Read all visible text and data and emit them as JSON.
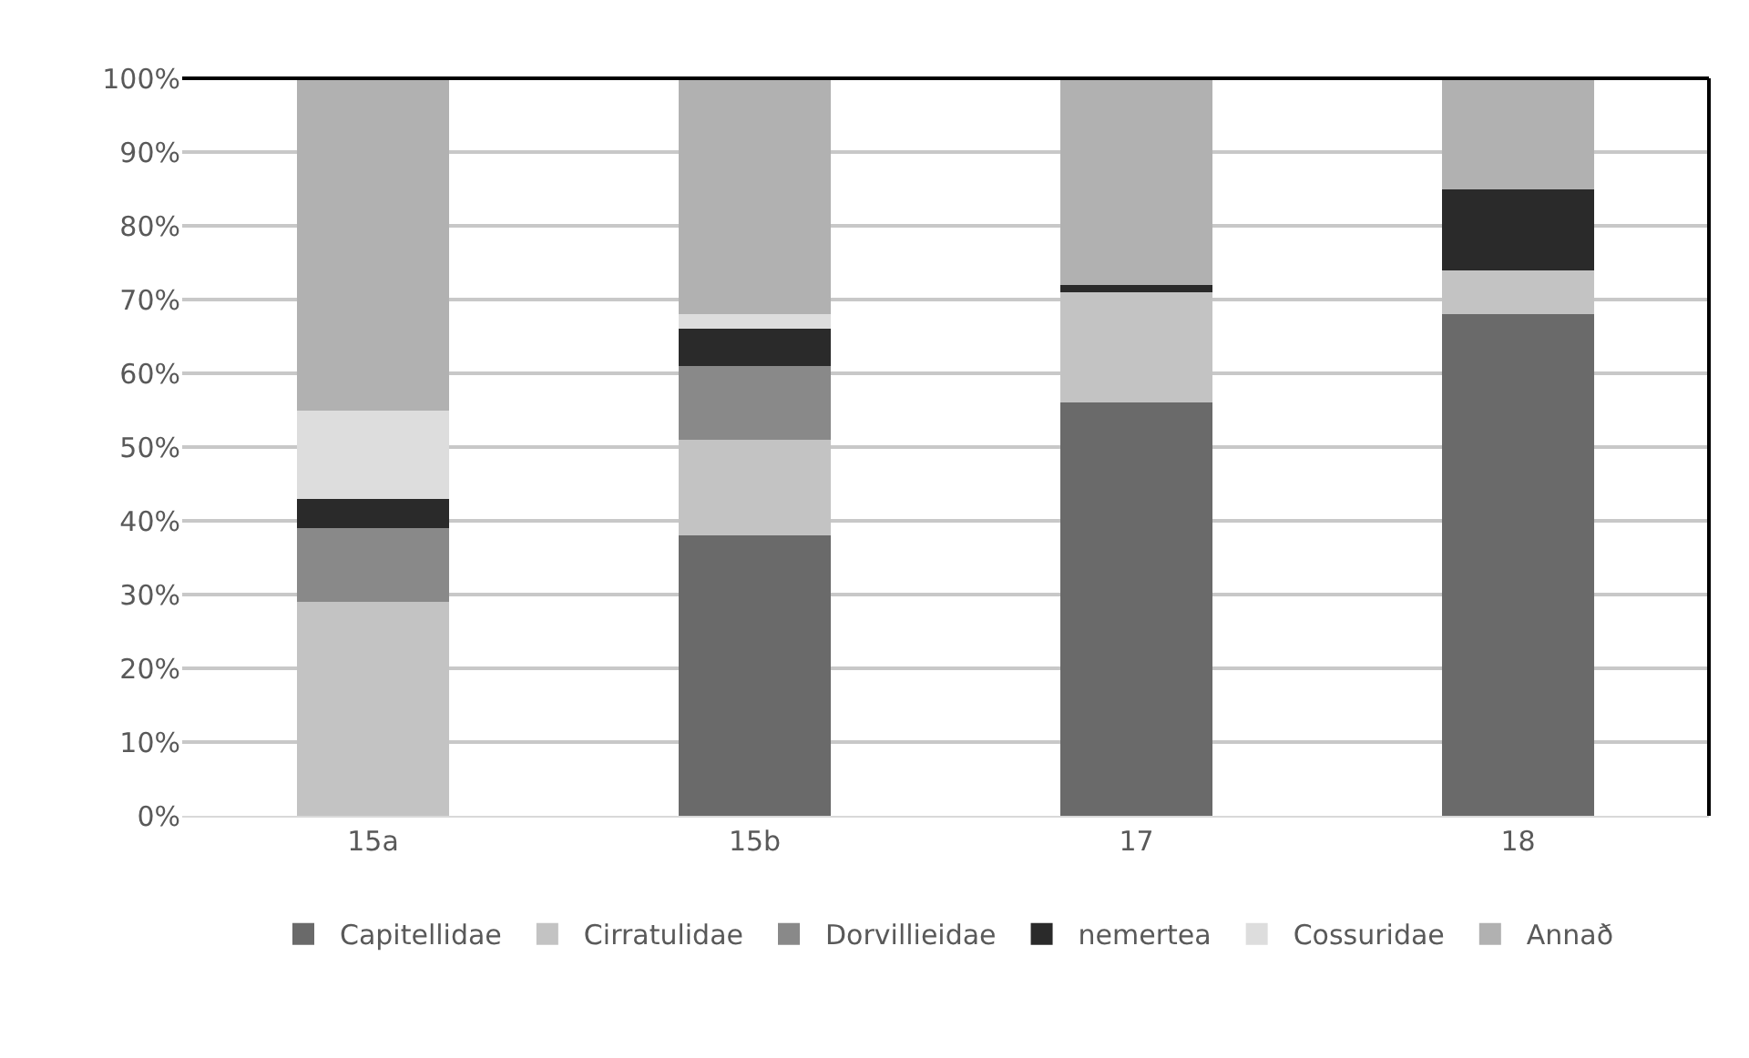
{
  "chart_data": {
    "type": "bar",
    "stacked": true,
    "categories": [
      "15a",
      "15b",
      "17",
      "18"
    ],
    "series": [
      {
        "name": "Capitellidae",
        "color": "#6a6a6a",
        "values": [
          0,
          38,
          56,
          68
        ]
      },
      {
        "name": "Cirratulidae",
        "color": "#c3c3c3",
        "values": [
          29,
          13,
          15,
          6
        ]
      },
      {
        "name": "Dorvillieidae",
        "color": "#898989",
        "values": [
          10,
          10,
          0,
          0
        ]
      },
      {
        "name": "nemertea",
        "color": "#2a2a2a",
        "values": [
          4,
          5,
          1,
          11
        ]
      },
      {
        "name": "Cossuridae",
        "color": "#dddddd",
        "values": [
          12,
          2,
          0,
          0
        ]
      },
      {
        "name": "Annað",
        "color": "#b1b1b1",
        "values": [
          45,
          32,
          28,
          15
        ]
      }
    ],
    "ylim": [
      0,
      100
    ],
    "yticks": [
      {
        "value": 0,
        "label": "0%"
      },
      {
        "value": 10,
        "label": "10%"
      },
      {
        "value": 20,
        "label": "20%"
      },
      {
        "value": 30,
        "label": "30%"
      },
      {
        "value": 40,
        "label": "40%"
      },
      {
        "value": 50,
        "label": "50%"
      },
      {
        "value": 60,
        "label": "60%"
      },
      {
        "value": 70,
        "label": "70%"
      },
      {
        "value": 80,
        "label": "80%"
      },
      {
        "value": 90,
        "label": "90%"
      },
      {
        "value": 100,
        "label": "100%"
      }
    ],
    "grid": "y",
    "legend": "bottom"
  }
}
